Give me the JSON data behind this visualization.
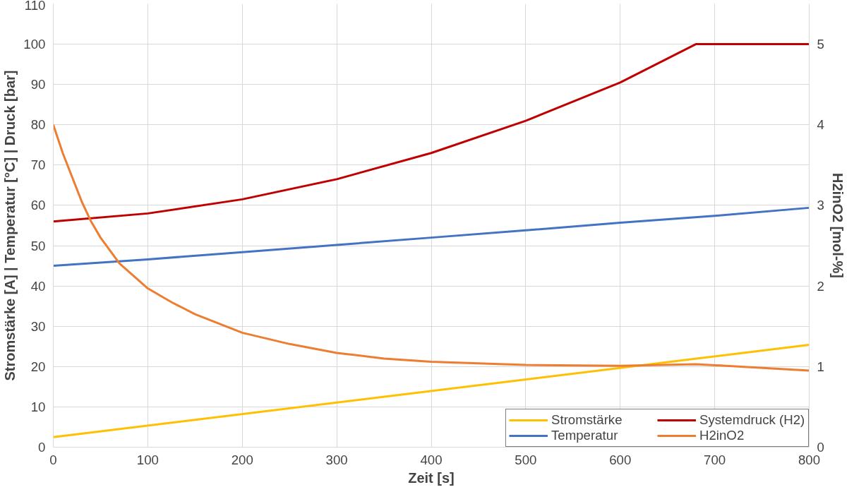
{
  "chart_data": {
    "type": "line",
    "xlabel": "Zeit [s]",
    "ylabel": "Stromstärke [A] | Temperatur [°C] | Druck [bar]",
    "y2label": "H2inO2 [mol-%]",
    "xlim": [
      0,
      800
    ],
    "xticks": [
      0,
      100,
      200,
      300,
      400,
      500,
      600,
      700,
      800
    ],
    "ylim": [
      0,
      110
    ],
    "yticks": [
      0,
      10,
      20,
      30,
      40,
      50,
      60,
      70,
      80,
      90,
      100,
      110
    ],
    "y2lim": [
      0,
      5.5
    ],
    "y2ticks": [
      0,
      1,
      2,
      3,
      4,
      5
    ],
    "grid": true,
    "legend": "bottom right",
    "marker": "none",
    "line_style": "solid",
    "series": [
      {
        "name": "Stromstärke",
        "color": "#ffc000",
        "x": [
          0,
          800
        ],
        "values": [
          2.5,
          25.4
        ]
      },
      {
        "name": "Temperatur",
        "color": "#4472c4",
        "x": [
          0,
          100,
          200,
          300,
          400,
          500,
          600,
          700,
          800
        ],
        "values": [
          45,
          46.6,
          48.4,
          50.2,
          52,
          53.8,
          55.7,
          57.4,
          59.4
        ]
      },
      {
        "name": "Systemdruck (H2)",
        "color": "#c00000",
        "x": [
          0,
          100,
          200,
          300,
          400,
          500,
          600,
          680,
          800
        ],
        "values": [
          56,
          58,
          61.5,
          66.5,
          73,
          81,
          90.5,
          100,
          100
        ]
      },
      {
        "name": "H2inO2",
        "color": "#ed7d31",
        "axis": "y2",
        "x": [
          0,
          10,
          20,
          30,
          40,
          50,
          70,
          100,
          125,
          150,
          200,
          250,
          300,
          350,
          400,
          500,
          600,
          680,
          800
        ],
        "values": [
          4.0,
          3.65,
          3.35,
          3.05,
          2.8,
          2.6,
          2.28,
          1.97,
          1.8,
          1.65,
          1.42,
          1.28,
          1.17,
          1.1,
          1.06,
          1.02,
          1.01,
          1.03,
          0.95
        ]
      }
    ]
  }
}
